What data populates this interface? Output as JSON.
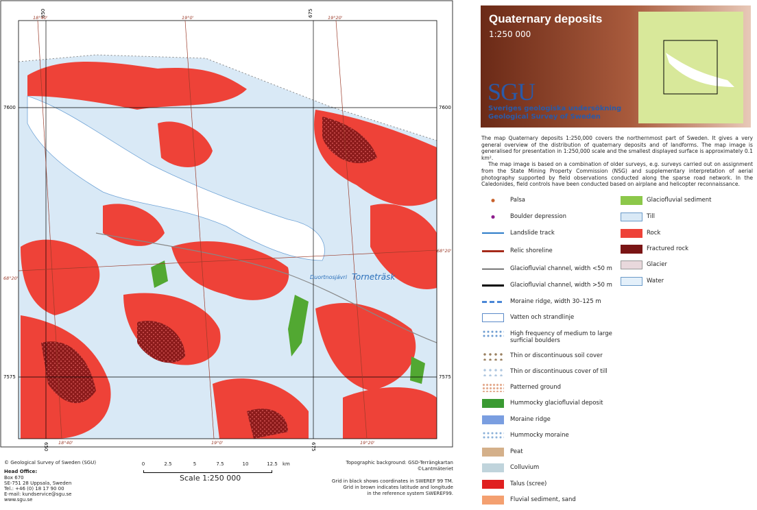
{
  "map": {
    "grid_labels": {
      "top": [
        "650",
        "675"
      ],
      "left": [
        "7600",
        "7575"
      ],
      "right": [
        "7600",
        "7575"
      ],
      "bottom": [
        "650",
        "675"
      ]
    },
    "graticule_labels": {
      "top": [
        "18°40'",
        "19°0'",
        "19°20'"
      ],
      "side": [
        "68°20'",
        "68°20'"
      ],
      "bottom": [
        "18°40'",
        "19°0'",
        "19°20'"
      ]
    },
    "places": [
      "Duortnosjávri",
      "Torneträsk"
    ]
  },
  "footer": {
    "copyright": "© Geological Survey of Sweden (SGU)",
    "head_office": "Head Office:",
    "address": [
      "Box 670",
      "SE-751 28 Uppsala, Sweden",
      "Tel.: +46 (0) 18 17 90 00",
      "E-mail: kundservice@sgu.se",
      "www.sgu.se"
    ],
    "scale_ticks": [
      "0",
      "2.5",
      "5",
      "7.5",
      "10",
      "12.5"
    ],
    "scale_unit": "km",
    "scale": "Scale 1:250 000",
    "topo": [
      "Topographic background: GSD-Terrängkartan",
      "©Lantmäteriet"
    ],
    "grid_note": [
      "Grid in black shows coordinates in SWEREF 99 TM.",
      "Grid in brown indicates latitude and longitude",
      "in the reference system SWEREF99."
    ]
  },
  "header": {
    "title": "Quaternary deposits",
    "scale": "1:250 000",
    "logo": "SGU",
    "name_sv": "Sveriges geologiska undersökning",
    "name_en": "Geological Survey of Sweden"
  },
  "description": [
    "The map Quaternary deposits 1:250,000 covers the northernmost part of Sweden. It gives a very general overview of the distribution of quaternary deposits and of landforms. The map image is generalised for presentation in 1:250,000 scale and the smallest displayed surface is approximately 0.1 km².",
    "The map image is based on a combination of older surveys, e.g. surveys carried out on assignment from the State Mining Property Commission (NSG) and supplementary interpretation of aerial photography supported by field observations conducted along the sparse road network. In the Caledonides, field controls have been conducted based on airplane and helicopter reconnaissance."
  ],
  "legend": {
    "left": [
      "Palsa",
      "Boulder depression",
      "Landslide track",
      "Relic shoreline",
      "Glaciofluvial channel, width <50 m",
      "Glaciofluvial channel, width >50 m",
      "Moraine ridge, width 30–125 m",
      "Vatten och strandlinje",
      "High frequency of medium to large surficial boulders",
      "Thin or discontinuous soil cover",
      "Thin or discontinuous cover of till",
      "Patterned ground",
      "Hummocky glaciofluvial deposit",
      "Moraine ridge",
      "Hummocky moraine",
      "Peat",
      "Colluvium",
      "Talus (scree)",
      "Fluvial sediment, sand"
    ],
    "right": [
      "Glaciofluvial sediment",
      "Till",
      "Rock",
      "Fractured rock",
      "Glacier",
      "Water"
    ]
  }
}
